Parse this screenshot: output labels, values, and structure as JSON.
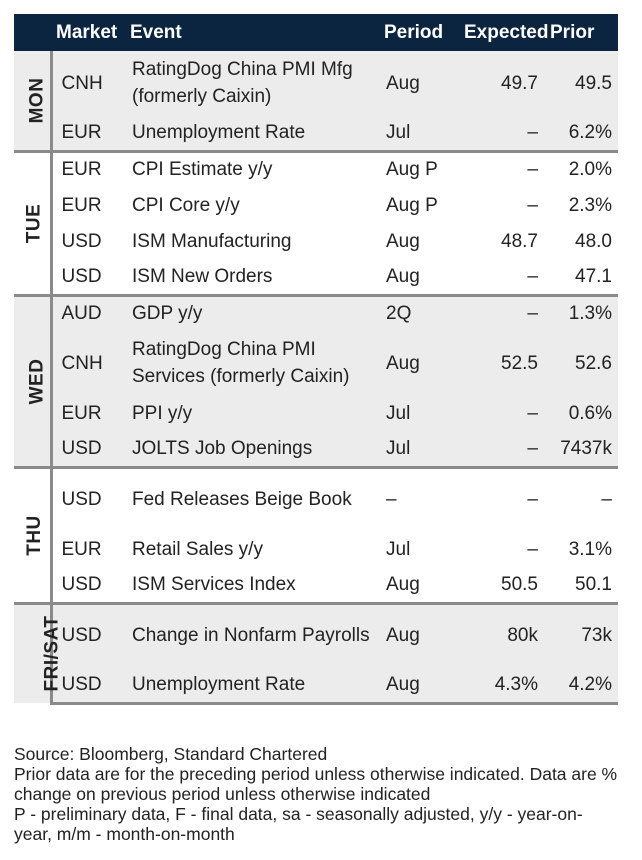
{
  "header": {
    "market": "Market",
    "event": "Event",
    "period": "Period",
    "expected": "Expected",
    "prior": "Prior"
  },
  "groups": [
    {
      "day": "MON",
      "rows": [
        {
          "market": "CNH",
          "event": "RatingDog China PMI Mfg (formerly Caixin)",
          "period": "Aug",
          "expected": "49.7",
          "prior": "49.5"
        },
        {
          "market": "EUR",
          "event": "Unemployment Rate",
          "period": "Jul",
          "expected": "–",
          "prior": "6.2%"
        }
      ]
    },
    {
      "day": "TUE",
      "rows": [
        {
          "market": "EUR",
          "event": "CPI Estimate y/y",
          "period": "Aug P",
          "expected": "–",
          "prior": "2.0%"
        },
        {
          "market": "EUR",
          "event": "CPI Core y/y",
          "period": "Aug P",
          "expected": "–",
          "prior": "2.3%"
        },
        {
          "market": "USD",
          "event": "ISM Manufacturing",
          "period": "Aug",
          "expected": "48.7",
          "prior": "48.0"
        },
        {
          "market": "USD",
          "event": "ISM New Orders",
          "period": "Aug",
          "expected": "–",
          "prior": "47.1"
        }
      ]
    },
    {
      "day": "WED",
      "rows": [
        {
          "market": "AUD",
          "event": "GDP y/y",
          "period": "2Q",
          "expected": "–",
          "prior": "1.3%"
        },
        {
          "market": "CNH",
          "event": "RatingDog China PMI Services (formerly Caixin)",
          "period": "Aug",
          "expected": "52.5",
          "prior": "52.6"
        },
        {
          "market": "EUR",
          "event": "PPI y/y",
          "period": "Jul",
          "expected": "–",
          "prior": "0.6%"
        },
        {
          "market": "USD",
          "event": "JOLTS Job Openings",
          "period": "Jul",
          "expected": "–",
          "prior": "7437k"
        }
      ]
    },
    {
      "day": "THU",
      "rows": [
        {
          "market": "USD",
          "event": "Fed Releases Beige Book",
          "period": "–",
          "expected": "–",
          "prior": "–"
        },
        {
          "market": "EUR",
          "event": "Retail Sales y/y",
          "period": "Jul",
          "expected": "–",
          "prior": "3.1%"
        },
        {
          "market": "USD",
          "event": "ISM Services Index",
          "period": "Aug",
          "expected": "50.5",
          "prior": "50.1"
        }
      ]
    },
    {
      "day": "FRI/SAT",
      "rows": [
        {
          "market": "USD",
          "event": "Change in Nonfarm Payrolls",
          "period": "Aug",
          "expected": "80k",
          "prior": "73k"
        },
        {
          "market": "USD",
          "event": "Unemployment Rate",
          "period": "Aug",
          "expected": "4.3%",
          "prior": "4.2%"
        }
      ]
    }
  ],
  "footer": {
    "source": "Source: Bloomberg, Standard Chartered",
    "note1": "Prior data are for the preceding period unless otherwise indicated. Data are % change on previous period unless otherwise indicated",
    "note2": "P - preliminary data, F - final data, sa - seasonally adjusted, y/y - year-on-year, m/m - month-on-month"
  }
}
